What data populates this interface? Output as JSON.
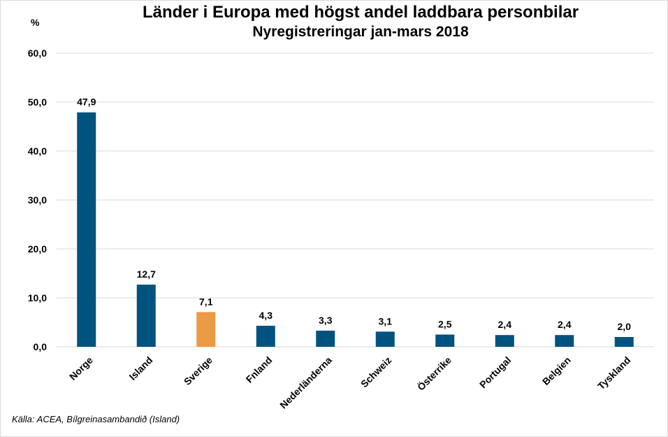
{
  "chart_data": {
    "type": "bar",
    "title": "Länder i Europa med högst andel laddbara personbilar",
    "subtitle": "Nyregistreringar jan-mars 2018",
    "ylabel": "%",
    "xlabel": "",
    "categories": [
      "Norge",
      "Island",
      "Sverige",
      "Fnland",
      "Nederländerna",
      "Schweiz",
      "Österrike",
      "Portugal",
      "Belgien",
      "Tyskland"
    ],
    "values": [
      47.9,
      12.7,
      7.1,
      4.3,
      3.3,
      3.1,
      2.5,
      2.4,
      2.4,
      2.0
    ],
    "value_labels": [
      "47,9",
      "12,7",
      "7,1",
      "4,3",
      "3,3",
      "3,1",
      "2,5",
      "2,4",
      "2,4",
      "2,0"
    ],
    "highlight_category": "Sverige",
    "ylim": [
      0,
      60
    ],
    "yticks": [
      0,
      10,
      20,
      30,
      40,
      50,
      60
    ],
    "ytick_labels": [
      "0,0",
      "10,0",
      "20,0",
      "30,0",
      "40,0",
      "50,0",
      "60,0"
    ],
    "grid": true,
    "colors": {
      "bar": "#00527f",
      "highlight": "#ec9a45",
      "grid": "#d9d9d9"
    },
    "source": "Källa: ACEA, Bílgreinasambandið (Island)"
  }
}
